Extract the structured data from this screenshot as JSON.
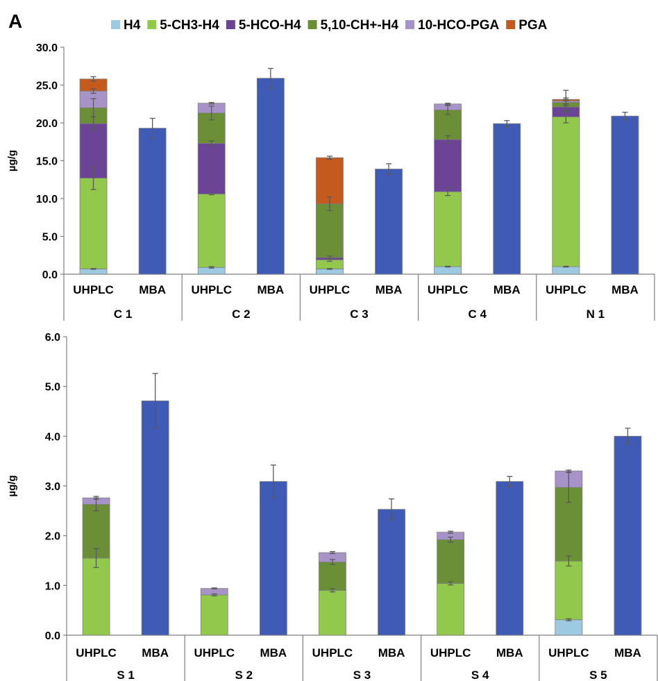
{
  "panel_label": "A",
  "legend": [
    {
      "name": "H4",
      "color": "#9ecae1"
    },
    {
      "name": "5-CH3-H4",
      "color": "#92c94d"
    },
    {
      "name": "5-HCO-H4",
      "color": "#6b4496"
    },
    {
      "name": "5,10-CH+-H4",
      "color": "#6a8f37"
    },
    {
      "name": "10-HCO-PGA",
      "color": "#a893c9"
    },
    {
      "name": "PGA",
      "color": "#c55a1f"
    }
  ],
  "colors": {
    "MBA": "#3f5bb5",
    "axis": "#7f7f7f",
    "error": "#595959"
  },
  "chart_data": [
    {
      "type": "bar",
      "stacked": true,
      "ylabel": "µg/g",
      "ylim": [
        0,
        30
      ],
      "yticks": [
        "0.0",
        "5.0",
        "10.0",
        "15.0",
        "20.0",
        "25.0",
        "30.0"
      ],
      "groups": [
        "C 1",
        "C 2",
        "C 3",
        "C 4",
        "N 1"
      ],
      "methods": [
        "UHPLC",
        "MBA"
      ],
      "series": [
        {
          "name": "H4",
          "values": [
            0.7,
            0.9,
            0.7,
            1.0,
            1.0
          ]
        },
        {
          "name": "5-CH3-H4",
          "values": [
            12.0,
            9.7,
            1.2,
            9.9,
            19.8
          ]
        },
        {
          "name": "5-HCO-H4",
          "values": [
            7.2,
            6.7,
            0.3,
            6.9,
            1.3
          ]
        },
        {
          "name": "5,10-CH+-H4",
          "values": [
            2.1,
            4.0,
            7.1,
            3.9,
            0.6
          ]
        },
        {
          "name": "10-HCO-PGA",
          "values": [
            2.2,
            1.3,
            0.0,
            0.8,
            0.2
          ]
        },
        {
          "name": "PGA",
          "values": [
            1.6,
            0.0,
            6.1,
            0.0,
            0.2
          ]
        }
      ],
      "mba_values": [
        19.3,
        25.9,
        13.9,
        19.9,
        20.9
      ],
      "mba_errors": [
        1.3,
        1.3,
        0.7,
        0.4,
        0.5
      ],
      "uhplc_errors": {
        "H4": [
          0.05,
          0.1,
          0.05,
          0.05,
          0.05
        ],
        "5-CH3-H4": [
          1.5,
          0.1,
          0.2,
          0.5,
          0.8
        ],
        "5-HCO-H4": [
          0.9,
          0.3,
          0.2,
          0.5,
          0.4
        ],
        "5,10-CH+-H4": [
          1.2,
          0.9,
          0.9,
          0.6,
          0.4
        ],
        "10-HCO-PGA": [
          0.3,
          0.1,
          0.0,
          0.1,
          1.4
        ],
        "PGA": [
          0.3,
          0.0,
          0.2,
          0.0,
          0.2
        ]
      }
    },
    {
      "type": "bar",
      "stacked": true,
      "ylabel": "µg/g",
      "ylim": [
        0,
        6
      ],
      "yticks": [
        "0.0",
        "1.0",
        "2.0",
        "3.0",
        "4.0",
        "5.0",
        "6.0"
      ],
      "groups": [
        "S 1",
        "S 2",
        "S 3",
        "S 4",
        "S 5"
      ],
      "methods": [
        "UHPLC",
        "MBA"
      ],
      "series": [
        {
          "name": "H4",
          "values": [
            0.0,
            0.0,
            0.0,
            0.0,
            0.31
          ]
        },
        {
          "name": "5-CH3-H4",
          "values": [
            1.55,
            0.81,
            0.9,
            1.04,
            1.18
          ]
        },
        {
          "name": "5-HCO-H4",
          "values": [
            0.0,
            0.0,
            0.0,
            0.0,
            0.0
          ]
        },
        {
          "name": "5,10-CH+-H4",
          "values": [
            1.08,
            0.0,
            0.57,
            0.88,
            1.48
          ]
        },
        {
          "name": "10-HCO-PGA",
          "values": [
            0.13,
            0.13,
            0.19,
            0.15,
            0.33
          ]
        },
        {
          "name": "PGA",
          "values": [
            0.0,
            0.0,
            0.0,
            0.0,
            0.0
          ]
        }
      ],
      "mba_values": [
        4.71,
        3.09,
        2.53,
        3.09,
        4.0
      ],
      "mba_errors": [
        0.55,
        0.33,
        0.21,
        0.1,
        0.16
      ],
      "uhplc_errors": {
        "H4": [
          0.0,
          0.0,
          0.0,
          0.0,
          0.02
        ],
        "5-CH3-H4": [
          0.19,
          0.02,
          0.03,
          0.03,
          0.1
        ],
        "5-HCO-H4": [
          0.0,
          0.0,
          0.0,
          0.0,
          0.0
        ],
        "5,10-CH+-H4": [
          0.13,
          0.0,
          0.05,
          0.05,
          0.3
        ],
        "10-HCO-PGA": [
          0.03,
          0.01,
          0.02,
          0.02,
          0.02
        ],
        "PGA": [
          0.0,
          0.0,
          0.0,
          0.0,
          0.0
        ]
      }
    }
  ]
}
